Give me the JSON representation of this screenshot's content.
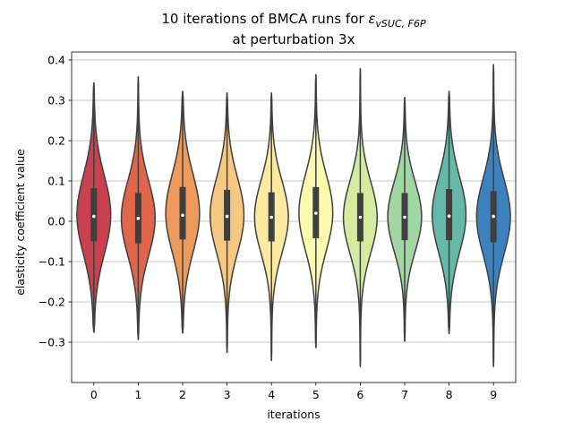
{
  "chart_data": {
    "type": "violin",
    "title_line1": "10 iterations of BMCA runs for ",
    "title_symbol": "ε",
    "title_subscript": "vSUC, F6P",
    "title_line2": "at perturbation 3x",
    "xlabel": "iterations",
    "ylabel": "elasticity coefficient value",
    "ylim": [
      -0.4,
      0.42
    ],
    "yticks": [
      {
        "value": -0.3,
        "label": "−0.3"
      },
      {
        "value": -0.2,
        "label": "−0.2"
      },
      {
        "value": -0.1,
        "label": "−0.1"
      },
      {
        "value": 0.0,
        "label": "0.0"
      },
      {
        "value": 0.1,
        "label": "0.1"
      },
      {
        "value": 0.2,
        "label": "0.2"
      },
      {
        "value": 0.3,
        "label": "0.3"
      },
      {
        "value": 0.4,
        "label": "0.4"
      }
    ],
    "grid": "horizontal",
    "categories": [
      "0",
      "1",
      "2",
      "3",
      "4",
      "5",
      "6",
      "7",
      "8",
      "9"
    ],
    "colors": [
      "#c9404f",
      "#e0664b",
      "#ef9a5d",
      "#f6c983",
      "#fbeaa0",
      "#fafab0",
      "#d6eba0",
      "#a3d6a5",
      "#66b9a8",
      "#3b82be"
    ],
    "violins": [
      {
        "min": -0.275,
        "q1": -0.05,
        "median": 0.012,
        "q3": 0.082,
        "max": 0.343
      },
      {
        "min": -0.293,
        "q1": -0.055,
        "median": 0.007,
        "q3": 0.07,
        "max": 0.358
      },
      {
        "min": -0.277,
        "q1": -0.045,
        "median": 0.015,
        "q3": 0.085,
        "max": 0.322
      },
      {
        "min": -0.325,
        "q1": -0.048,
        "median": 0.012,
        "q3": 0.078,
        "max": 0.318
      },
      {
        "min": -0.345,
        "q1": -0.05,
        "median": 0.01,
        "q3": 0.072,
        "max": 0.318
      },
      {
        "min": -0.313,
        "q1": -0.042,
        "median": 0.02,
        "q3": 0.085,
        "max": 0.363
      },
      {
        "min": -0.36,
        "q1": -0.05,
        "median": 0.01,
        "q3": 0.07,
        "max": 0.378
      },
      {
        "min": -0.297,
        "q1": -0.047,
        "median": 0.01,
        "q3": 0.07,
        "max": 0.307
      },
      {
        "min": -0.278,
        "q1": -0.047,
        "median": 0.013,
        "q3": 0.08,
        "max": 0.322
      },
      {
        "min": -0.36,
        "q1": -0.052,
        "median": 0.012,
        "q3": 0.075,
        "max": 0.388
      }
    ]
  }
}
